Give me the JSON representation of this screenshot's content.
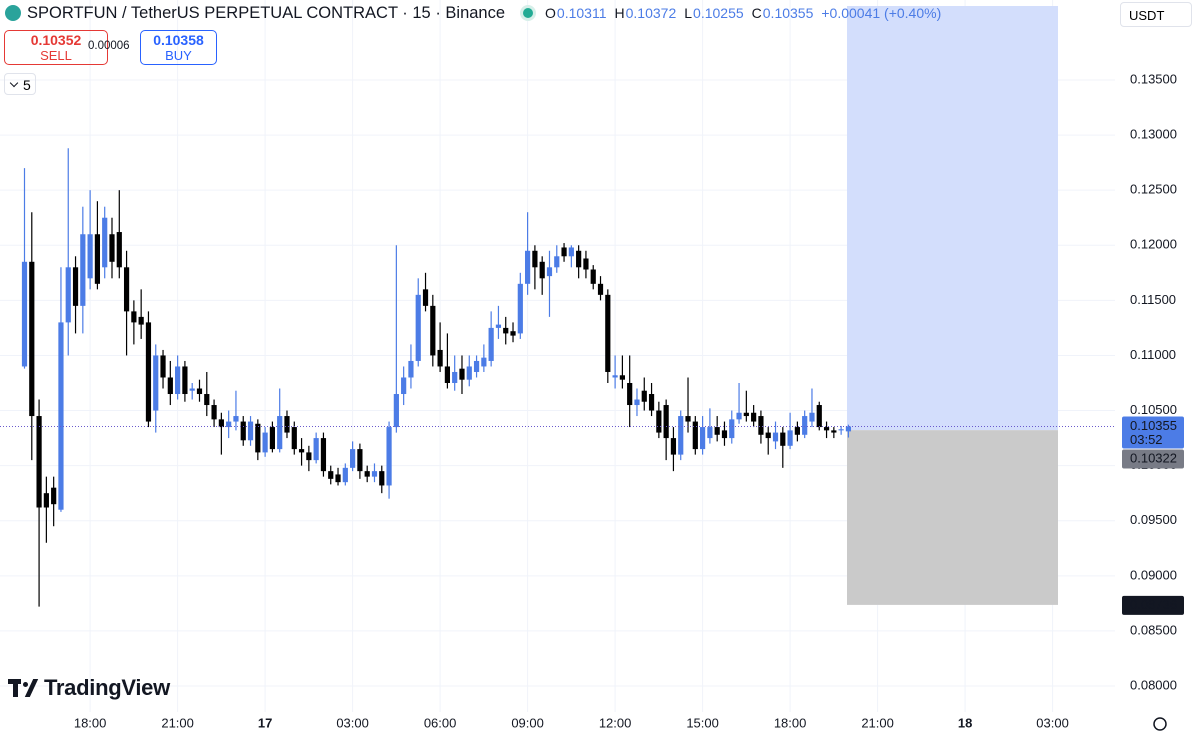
{
  "header": {
    "symbol": "SPORTFUN / TetherUS PERPETUAL CONTRACT · 15 · Binance",
    "ohlc_labels": [
      "O",
      "H",
      "L",
      "C"
    ],
    "change": "+0.00041 (+0.40%)"
  },
  "trade": {
    "sell_price": 0.10352,
    "sell_label": "SELL",
    "spread": 6e-05,
    "buy_price": 0.10358,
    "buy_label": "BUY"
  },
  "indicator_count": "5",
  "currency": "USDT",
  "countdown": "03:52",
  "logo": "TradingView",
  "chart_data": {
    "type": "candlestick",
    "up_color": "#4c7ce6",
    "down_color": "#000000",
    "xlim": [
      14.91,
      53.14
    ],
    "ylim": [
      0.07764,
      0.14226
    ],
    "xticks": [
      {
        "value": 18,
        "label": "18:00"
      },
      {
        "value": 21,
        "label": "21:00"
      },
      {
        "value": 24,
        "label": "17"
      },
      {
        "value": 27,
        "label": "03:00"
      },
      {
        "value": 30,
        "label": "06:00"
      },
      {
        "value": 33,
        "label": "09:00"
      },
      {
        "value": 36,
        "label": "12:00"
      },
      {
        "value": 39,
        "label": "15:00"
      },
      {
        "value": 42,
        "label": "18:00"
      },
      {
        "value": 45,
        "label": "21:00"
      },
      {
        "value": 48,
        "label": "18"
      },
      {
        "value": 51,
        "label": "03:00"
      }
    ],
    "yticks": [
      {
        "value": 0.08,
        "label": "0.08000"
      },
      {
        "value": 0.085,
        "label": "0.08500"
      },
      {
        "value": 0.09,
        "label": "0.09000"
      },
      {
        "value": 0.095,
        "label": "0.09500"
      },
      {
        "value": 0.1,
        "label": "0.10000"
      },
      {
        "value": 0.105,
        "label": "0.10500"
      },
      {
        "value": 0.11,
        "label": "0.11000"
      },
      {
        "value": 0.115,
        "label": "0.11500"
      },
      {
        "value": 0.12,
        "label": "0.12000"
      },
      {
        "value": 0.125,
        "label": "0.12500"
      },
      {
        "value": 0.13,
        "label": "0.13000"
      },
      {
        "value": 0.135,
        "label": "0.13500"
      }
    ],
    "grid": true,
    "x": [
      15.75,
      16,
      16.25,
      16.5,
      16.75,
      17,
      17.25,
      17.5,
      17.75,
      18,
      18.25,
      18.5,
      18.75,
      19,
      19.25,
      19.5,
      19.75,
      20,
      20.25,
      20.5,
      20.75,
      21,
      21.25,
      21.5,
      21.75,
      22,
      22.25,
      22.5,
      22.75,
      23,
      23.25,
      23.5,
      23.75,
      24,
      24.25,
      24.5,
      24.75,
      25,
      25.25,
      25.5,
      25.75,
      26,
      26.25,
      26.5,
      26.75,
      27,
      27.25,
      27.5,
      27.75,
      28,
      28.25,
      28.5,
      28.75,
      29,
      29.25,
      29.5,
      29.75,
      30,
      30.25,
      30.5,
      30.75,
      31,
      31.25,
      31.5,
      31.75,
      32,
      32.25,
      32.5,
      32.75,
      33,
      33.25,
      33.5,
      33.75,
      34,
      34.25,
      34.5,
      34.75,
      35,
      35.25,
      35.5,
      35.75,
      36,
      36.25,
      36.5,
      36.75,
      37,
      37.25,
      37.5,
      37.75,
      38,
      38.25,
      38.5,
      38.75,
      39,
      39.25,
      39.5,
      39.75,
      40,
      40.25,
      40.5,
      40.75,
      41,
      41.25,
      41.5,
      41.75,
      42,
      42.25,
      42.5,
      42.75,
      43,
      43.25,
      43.5,
      43.75,
      44
    ],
    "open": [
      0.109,
      0.1185,
      0.1045,
      0.0975,
      0.098,
      0.096,
      0.113,
      0.118,
      0.1145,
      0.117,
      0.121,
      0.118,
      0.121,
      0.1212,
      0.118,
      0.114,
      0.1135,
      0.113,
      0.105,
      0.11,
      0.108,
      0.1065,
      0.109,
      0.1068,
      0.107,
      0.1065,
      0.1055,
      0.1042,
      0.1035,
      0.104,
      0.104,
      0.1023,
      0.1038,
      0.1012,
      0.1035,
      0.1015,
      0.1045,
      0.1035,
      0.1015,
      0.1012,
      0.1005,
      0.1025,
      0.0995,
      0.0992,
      0.0985,
      0.0998,
      0.1015,
      0.0995,
      0.099,
      0.0995,
      0.0982,
      0.1035,
      0.1065,
      0.108,
      0.1095,
      0.116,
      0.1145,
      0.1105,
      0.109,
      0.1075,
      0.1088,
      0.1078,
      0.1085,
      0.109,
      0.1095,
      0.1125,
      0.1125,
      0.1122,
      0.112,
      0.1165,
      0.1195,
      0.1185,
      0.1172,
      0.118,
      0.1198,
      0.119,
      0.1195,
      0.1188,
      0.1178,
      0.1165,
      0.1155,
      0.108,
      0.1082,
      0.1075,
      0.1055,
      0.1068,
      0.1065,
      0.105,
      0.1055,
      0.1025,
      0.101,
      0.1045,
      0.104,
      0.1015,
      0.1025,
      0.1035,
      0.1032,
      0.1025,
      0.1042,
      0.1048,
      0.1048,
      0.1045,
      0.103,
      0.1022,
      0.103,
      0.1018,
      0.1035,
      0.1028,
      0.104,
      0.1055,
      0.1035,
      0.1032,
      0.1032,
      0.10311
    ],
    "high": [
      0.127,
      0.123,
      0.106,
      0.099,
      0.099,
      0.118,
      0.1288,
      0.119,
      0.1235,
      0.125,
      0.124,
      0.1235,
      0.1225,
      0.125,
      0.1195,
      0.115,
      0.116,
      0.114,
      0.111,
      0.1105,
      0.1095,
      0.11,
      0.1095,
      0.1075,
      0.1078,
      0.1085,
      0.106,
      0.1048,
      0.105,
      0.1068,
      0.1045,
      0.1045,
      0.1042,
      0.1035,
      0.104,
      0.107,
      0.105,
      0.104,
      0.1025,
      0.1018,
      0.103,
      0.103,
      0.1,
      0.0998,
      0.1002,
      0.1022,
      0.102,
      0.1,
      0.1002,
      0.1,
      0.104,
      0.12,
      0.109,
      0.111,
      0.117,
      0.1175,
      0.1155,
      0.113,
      0.112,
      0.11,
      0.11,
      0.11,
      0.11,
      0.111,
      0.114,
      0.1145,
      0.1135,
      0.113,
      0.1175,
      0.123,
      0.12,
      0.119,
      0.1195,
      0.12,
      0.1202,
      0.12,
      0.12,
      0.1195,
      0.1182,
      0.1172,
      0.116,
      0.11,
      0.11,
      0.11,
      0.107,
      0.108,
      0.1075,
      0.1058,
      0.106,
      0.1035,
      0.105,
      0.108,
      0.1045,
      0.1045,
      0.1052,
      0.1045,
      0.104,
      0.105,
      0.1075,
      0.1068,
      0.1055,
      0.105,
      0.1035,
      0.104,
      0.1035,
      0.1048,
      0.104,
      0.105,
      0.107,
      0.1058,
      0.104,
      0.1035,
      0.1036,
      0.10372
    ],
    "low": [
      0.1088,
      0.1005,
      0.0872,
      0.093,
      0.0945,
      0.0958,
      0.11,
      0.112,
      0.112,
      0.116,
      0.116,
      0.117,
      0.117,
      0.117,
      0.11,
      0.111,
      0.1115,
      0.1035,
      0.103,
      0.107,
      0.1055,
      0.106,
      0.1058,
      0.106,
      0.1058,
      0.1045,
      0.1035,
      0.101,
      0.1025,
      0.1032,
      0.1018,
      0.1018,
      0.1005,
      0.1008,
      0.1012,
      0.1012,
      0.1025,
      0.101,
      0.1,
      0.0995,
      0.1002,
      0.099,
      0.0983,
      0.0982,
      0.0982,
      0.0995,
      0.0988,
      0.0985,
      0.0985,
      0.0975,
      0.097,
      0.103,
      0.1055,
      0.107,
      0.109,
      0.114,
      0.109,
      0.1085,
      0.107,
      0.1068,
      0.1065,
      0.1072,
      0.108,
      0.1085,
      0.109,
      0.1115,
      0.111,
      0.1112,
      0.1115,
      0.1155,
      0.116,
      0.1155,
      0.1135,
      0.1175,
      0.1185,
      0.118,
      0.117,
      0.117,
      0.116,
      0.115,
      0.1075,
      0.107,
      0.107,
      0.1035,
      0.1045,
      0.105,
      0.1045,
      0.1025,
      0.1005,
      0.0995,
      0.1005,
      0.103,
      0.101,
      0.101,
      0.102,
      0.1022,
      0.1018,
      0.102,
      0.1038,
      0.104,
      0.1035,
      0.102,
      0.101,
      0.1015,
      0.0998,
      0.1015,
      0.1022,
      0.1025,
      0.1035,
      0.1032,
      0.1025,
      0.1025,
      0.1028,
      0.10255
    ],
    "close": [
      0.1185,
      0.1045,
      0.0962,
      0.0962,
      0.0965,
      0.113,
      0.118,
      0.1145,
      0.121,
      0.121,
      0.1165,
      0.1225,
      0.1185,
      0.118,
      0.114,
      0.113,
      0.1128,
      0.104,
      0.11,
      0.108,
      0.1065,
      0.109,
      0.1065,
      0.107,
      0.1065,
      0.1055,
      0.1042,
      0.1035,
      0.104,
      0.1045,
      0.1023,
      0.104,
      0.1012,
      0.103,
      0.1015,
      0.1045,
      0.103,
      0.1015,
      0.1012,
      0.1005,
      0.1025,
      0.0995,
      0.0988,
      0.0985,
      0.0998,
      0.1015,
      0.0995,
      0.099,
      0.0995,
      0.0982,
      0.1035,
      0.1065,
      0.108,
      0.1095,
      0.1155,
      0.1145,
      0.11,
      0.109,
      0.1075,
      0.1085,
      0.1078,
      0.109,
      0.1095,
      0.1098,
      0.1125,
      0.1128,
      0.112,
      0.1118,
      0.1165,
      0.1195,
      0.118,
      0.117,
      0.118,
      0.119,
      0.119,
      0.1198,
      0.118,
      0.1178,
      0.1165,
      0.1155,
      0.1085,
      0.1082,
      0.1078,
      0.1055,
      0.106,
      0.1058,
      0.105,
      0.103,
      0.1025,
      0.101,
      0.1045,
      0.104,
      0.1015,
      0.1035,
      0.1035,
      0.1028,
      0.1025,
      0.1042,
      0.1048,
      0.1045,
      0.104,
      0.1028,
      0.1025,
      0.103,
      0.1018,
      0.1032,
      0.1028,
      0.1045,
      0.1048,
      0.1035,
      0.1032,
      0.103,
      0.1033,
      0.10355
    ],
    "position": {
      "entry": 0.10322,
      "stop": 0.08736
    }
  }
}
